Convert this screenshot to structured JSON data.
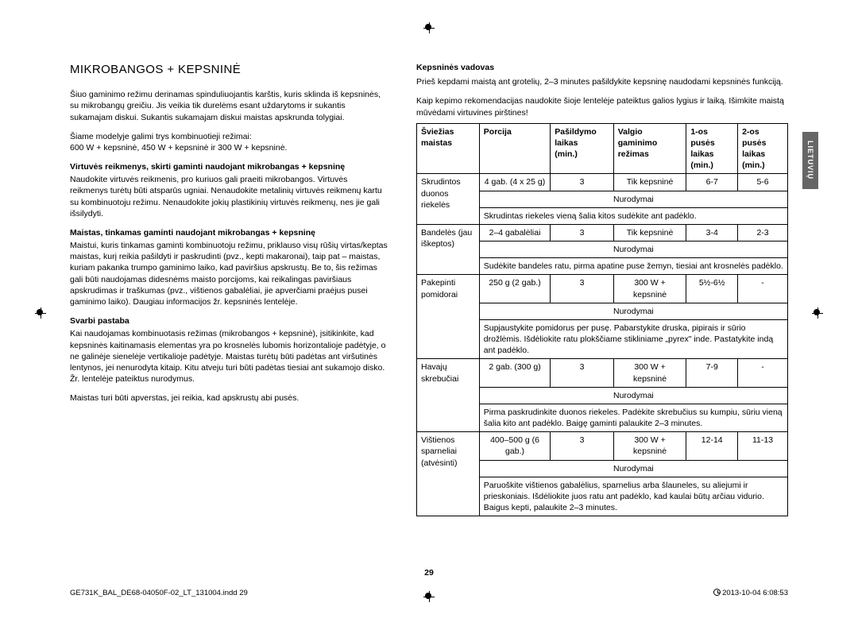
{
  "title": "MIKROBANGOS + KEPSNINĖ",
  "left": {
    "p1": "Šiuo gaminimo režimu derinamas spinduliuojantis karštis, kuris sklinda iš kepsninės, su mikrobangų greičiu. Jis veikia tik durelėms esant uždarytoms ir sukantis sukamajam diskui. Sukantis sukamajam diskui maistas apskrunda tolygiai.",
    "p2": "Šiame modelyje galimi trys kombinuotieji režimai:",
    "p3": "600 W + kepsninė, 450 W + kepsninė ir 300 W + kepsninė.",
    "h1": "Virtuvės reikmenys, skirti gaminti naudojant mikrobangas + kepsninę",
    "p4": "Naudokite virtuvės reikmenis, pro kuriuos gali praeiti mikrobangos. Virtuvės reikmenys turėtų būti atsparūs ugniai. Nenaudokite metalinių virtuvės reikmenų kartu su kombinuotoju režimu. Nenaudokite jokių plastikinių virtuvės reikmenų, nes jie gali išsilydyti.",
    "h2": "Maistas, tinkamas gaminti naudojant mikrobangas + kepsninę",
    "p5": "Maistui, kuris tinkamas gaminti kombinuotoju režimu, priklauso visų rūšių virtas/keptas maistas, kurį reikia pašildyti ir paskrudinti (pvz., kepti makaronai), taip pat – maistas, kuriam pakanka trumpo gaminimo laiko, kad paviršius apskrustų. Be to, šis režimas gali būti naudojamas didesnėms maisto porcijoms, kai reikalingas paviršiaus apskrudimas ir traškumas (pvz., vištienos gabalėliai, jie apverčiami praėjus pusei gaminimo laiko). Daugiau informacijos žr. kepsninės lentelėje.",
    "h3": "Svarbi pastaba",
    "p6": "Kai naudojamas kombinuotasis režimas (mikrobangos + kepsninė), įsitikinkite, kad kepsninės kaitinamasis elementas yra po krosnelės lubomis horizontalioje padėtyje, o ne galinėje sienelėje vertikalioje padėtyje. Maistas turėtų būti padėtas ant viršutinės lentynos, jei nenurodyta kitaip. Kitu atveju turi būti padėtas tiesiai ant sukamojo disko. Žr. lentelėje pateiktus nurodymus.",
    "p7": "Maistas turi būti apverstas, jei reikia, kad apskrustų abi pusės."
  },
  "right": {
    "subtitle": "Kepsninės vadovas",
    "p1": "Prieš kepdami maistą ant grotelių, 2–3 minutes pašildykite kepsninę naudodami kepsninės funkciją.",
    "p2": "Kaip kepimo rekomendacijas naudokite šioje lentelėje pateiktus galios lygius ir laiką. Išimkite maistą mūvėdami virtuvines pirštines!",
    "headers": {
      "c1": "Šviežias maistas",
      "c2": "Porcija",
      "c3a": "Pašildymo",
      "c3b": "laikas",
      "c3c": "(min.)",
      "c4a": "Valgio",
      "c4b": "gaminimo",
      "c4c": "režimas",
      "c5a": "1-os pusės",
      "c5b": "laikas",
      "c5c": "(min.)",
      "c6a": "2-os pusės",
      "c6b": "laikas",
      "c6c": "(min.)"
    },
    "instrLabel": "Nurodymai",
    "rows": [
      {
        "food": "Skrudintos duonos riekelės",
        "portion": "4 gab. (4 x 25 g)",
        "pre": "3",
        "mode": "Tik kepsninė",
        "t1": "6-7",
        "t2": "5-6",
        "instr": "Skrudintas riekeles vieną šalia kitos sudėkite ant padėklo."
      },
      {
        "food": "Bandelės (jau iškeptos)",
        "portion": "2–4 gabalėliai",
        "pre": "3",
        "mode": "Tik kepsninė",
        "t1": "3-4",
        "t2": "2-3",
        "instr": "Sudėkite bandeles ratu, pirma apatine puse žemyn, tiesiai ant krosnelės padėklo."
      },
      {
        "food": "Pakepinti pomidorai",
        "portion": "250 g (2 gab.)",
        "pre": "3",
        "mode": "300 W + kepsninė",
        "t1": "5½-6½",
        "t2": "-",
        "instr": "Supjaustykite pomidorus per pusę. Pabarstykite druska, pipirais ir sūrio drožlėmis. Išdėliokite ratu plokščiame stikliniame „pyrex\" inde. Pastatykite indą ant padėklo."
      },
      {
        "food": "Havajų skrebučiai",
        "portion": "2 gab. (300 g)",
        "pre": "3",
        "mode": "300 W + kepsninė",
        "t1": "7-9",
        "t2": "-",
        "instr": "Pirma paskrudinkite duonos riekeles. Padėkite skrebučius su kumpiu, sūriu vieną šalia kito ant padėklo. Baigę gaminti palaukite 2–3 minutes."
      },
      {
        "food": "Vištienos sparneliai (atvėsinti)",
        "portion": "400–500 g (6 gab.)",
        "pre": "3",
        "mode": "300 W + kepsninė",
        "t1": "12-14",
        "t2": "11-13",
        "instr": "Paruoškite vištienos gabalėlius, sparnelius arba šlauneles, su aliejumi ir prieskoniais. Išdėliokite juos ratu ant padėklo, kad kaulai būtų arčiau vidurio. Baigus kepti, palaukite 2–3 minutes."
      }
    ]
  },
  "sideTab": "LIETUVIŲ",
  "pageNum": "29",
  "footer": {
    "left": "GE731K_BAL_DE68-04050F-02_LT_131004.indd   29",
    "right": "2013-10-04    6:08:53"
  }
}
